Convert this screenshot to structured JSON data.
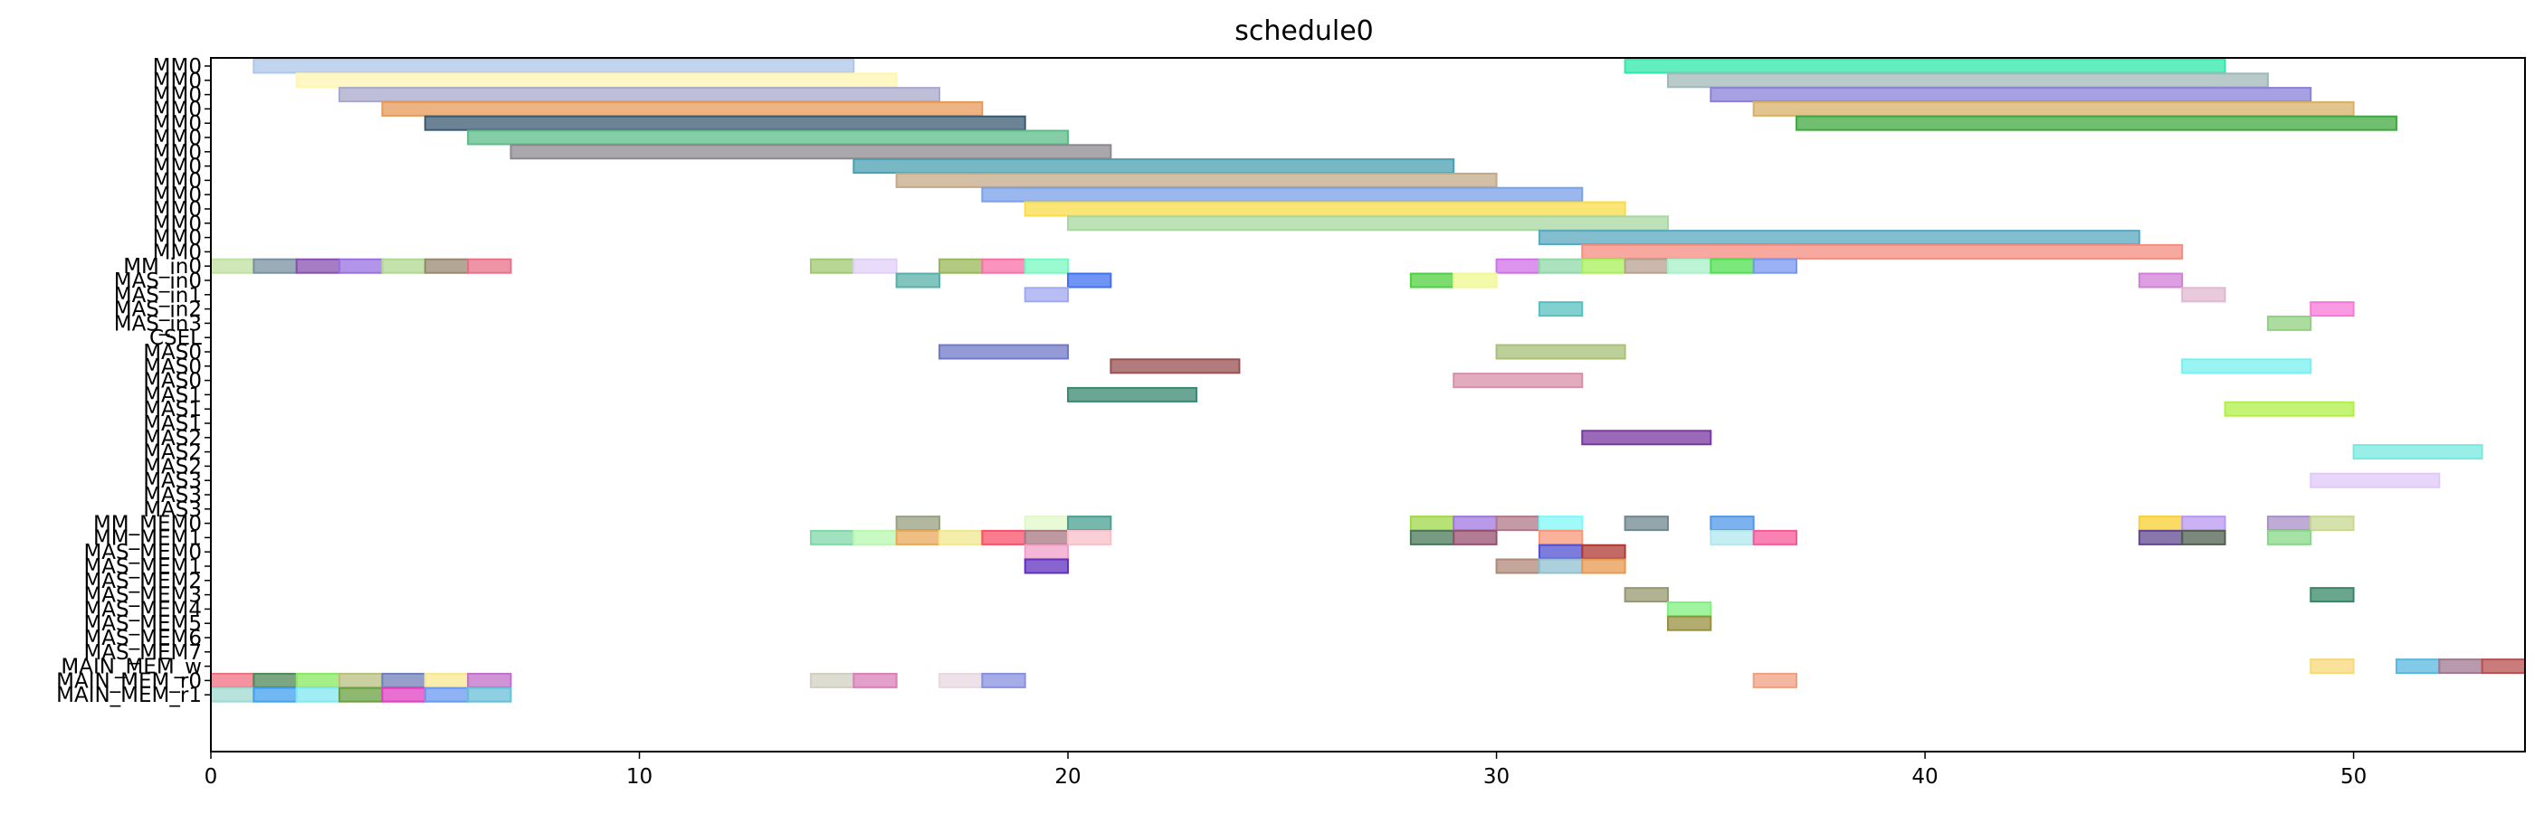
{
  "chart_data": {
    "type": "gantt",
    "title": "schedule0",
    "xlim": [
      0,
      54
    ],
    "xticks": [
      0,
      10,
      20,
      30,
      40,
      50
    ],
    "rows": [
      "MM0",
      "MM0",
      "MM0",
      "MM0",
      "MM0",
      "MM0",
      "MM0",
      "MM0",
      "MM0",
      "MM0",
      "MM0",
      "MM0",
      "MM0",
      "MM0",
      "MM_in0",
      "MAS_in0",
      "MAS_in1",
      "MAS_in2",
      "MAS_in3",
      "CSEL",
      "MAS0",
      "MAS0",
      "MAS0",
      "MAS1",
      "MAS1",
      "MAS1",
      "MAS2",
      "MAS2",
      "MAS2",
      "MAS3",
      "MAS3",
      "MAS3",
      "MM_MEM0",
      "MM_MEM1",
      "MAS_MEM0",
      "MAS_MEM1",
      "MAS_MEM2",
      "MAS_MEM3",
      "MAS_MEM4",
      "MAS_MEM5",
      "MAS_MEM6",
      "MAS_MEM7",
      "MAIN_MEM_w",
      "MAIN_MEM_r0",
      "MAIN_MEM_r1"
    ],
    "bars": [
      {
        "row": 0,
        "start": 1,
        "end": 15,
        "color": "#aec7e8"
      },
      {
        "row": 0,
        "start": 33,
        "end": 47,
        "color": "#2ee8a8"
      },
      {
        "row": 1,
        "start": 2,
        "end": 16,
        "color": "#fff6b0"
      },
      {
        "row": 1,
        "start": 34,
        "end": 48,
        "color": "#a0b8b8"
      },
      {
        "row": 2,
        "start": 3,
        "end": 17,
        "color": "#a8a8cc"
      },
      {
        "row": 2,
        "start": 35,
        "end": 49,
        "color": "#8a80d8"
      },
      {
        "row": 3,
        "start": 4,
        "end": 18,
        "color": "#e89a58"
      },
      {
        "row": 3,
        "start": 36,
        "end": 50,
        "color": "#d8b068"
      },
      {
        "row": 4,
        "start": 5,
        "end": 19,
        "color": "#3a5a70"
      },
      {
        "row": 4,
        "start": 37,
        "end": 51,
        "color": "#40a840"
      },
      {
        "row": 5,
        "start": 6,
        "end": 20,
        "color": "#5cbc88"
      },
      {
        "row": 6,
        "start": 7,
        "end": 21,
        "color": "#8c8890"
      },
      {
        "row": 7,
        "start": 15,
        "end": 29,
        "color": "#4aa0b0"
      },
      {
        "row": 8,
        "start": 16,
        "end": 30,
        "color": "#c4a888"
      },
      {
        "row": 9,
        "start": 18,
        "end": 32,
        "color": "#7aa0e8"
      },
      {
        "row": 10,
        "start": 19,
        "end": 33,
        "color": "#f8dc48"
      },
      {
        "row": 11,
        "start": 20,
        "end": 34,
        "color": "#a8d8a0"
      },
      {
        "row": 12,
        "start": 31,
        "end": 45,
        "color": "#58a8c0"
      },
      {
        "row": 13,
        "start": 32,
        "end": 46,
        "color": "#f48c80"
      },
      {
        "row": 14,
        "start": 0,
        "end": 1,
        "color": "#c0e0a0"
      },
      {
        "row": 14,
        "start": 1,
        "end": 2,
        "color": "#7890a0"
      },
      {
        "row": 14,
        "start": 2,
        "end": 3,
        "color": "#8850b0"
      },
      {
        "row": 14,
        "start": 3,
        "end": 4,
        "color": "#9870e0"
      },
      {
        "row": 14,
        "start": 4,
        "end": 5,
        "color": "#b0d890"
      },
      {
        "row": 14,
        "start": 5,
        "end": 6,
        "color": "#988870"
      },
      {
        "row": 14,
        "start": 6,
        "end": 7,
        "color": "#e87088"
      },
      {
        "row": 14,
        "start": 14,
        "end": 15,
        "color": "#a0c870"
      },
      {
        "row": 14,
        "start": 15,
        "end": 16,
        "color": "#e0d0f8"
      },
      {
        "row": 14,
        "start": 17,
        "end": 18,
        "color": "#98b858"
      },
      {
        "row": 14,
        "start": 18,
        "end": 19,
        "color": "#f870a8"
      },
      {
        "row": 14,
        "start": 19,
        "end": 20,
        "color": "#78f8c0"
      },
      {
        "row": 14,
        "start": 30,
        "end": 31,
        "color": "#d070e8"
      },
      {
        "row": 14,
        "start": 31,
        "end": 32,
        "color": "#90d8a8"
      },
      {
        "row": 14,
        "start": 32,
        "end": 33,
        "color": "#a8f058"
      },
      {
        "row": 14,
        "start": 33,
        "end": 34,
        "color": "#b8a090"
      },
      {
        "row": 14,
        "start": 34,
        "end": 35,
        "color": "#a8f0c8"
      },
      {
        "row": 14,
        "start": 35,
        "end": 36,
        "color": "#50e050"
      },
      {
        "row": 14,
        "start": 36,
        "end": 37,
        "color": "#7898f0"
      },
      {
        "row": 15,
        "start": 16,
        "end": 17,
        "color": "#58b0a8"
      },
      {
        "row": 15,
        "start": 20,
        "end": 21,
        "color": "#4070f0"
      },
      {
        "row": 15,
        "start": 28,
        "end": 29,
        "color": "#50d040"
      },
      {
        "row": 15,
        "start": 29,
        "end": 30,
        "color": "#f0f890"
      },
      {
        "row": 15,
        "start": 45,
        "end": 46,
        "color": "#d080d8"
      },
      {
        "row": 16,
        "start": 19,
        "end": 20,
        "color": "#a0a8f0"
      },
      {
        "row": 16,
        "start": 46,
        "end": 47,
        "color": "#e0b8d0"
      },
      {
        "row": 17,
        "start": 31,
        "end": 32,
        "color": "#58c0c0"
      },
      {
        "row": 17,
        "start": 49,
        "end": 50,
        "color": "#f878d8"
      },
      {
        "row": 18,
        "start": 48,
        "end": 49,
        "color": "#90d080"
      },
      {
        "row": 20,
        "start": 17,
        "end": 20,
        "color": "#7078c8"
      },
      {
        "row": 20,
        "start": 30,
        "end": 33,
        "color": "#a8c078"
      },
      {
        "row": 21,
        "start": 21,
        "end": 24,
        "color": "#985050"
      },
      {
        "row": 21,
        "start": 46,
        "end": 49,
        "color": "#78f0f0"
      },
      {
        "row": 22,
        "start": 29,
        "end": 32,
        "color": "#d890a8"
      },
      {
        "row": 23,
        "start": 20,
        "end": 23,
        "color": "#3a8870"
      },
      {
        "row": 24,
        "start": 47,
        "end": 50,
        "color": "#b0f048"
      },
      {
        "row": 26,
        "start": 32,
        "end": 35,
        "color": "#7838a0"
      },
      {
        "row": 27,
        "start": 50,
        "end": 53,
        "color": "#78e8e0"
      },
      {
        "row": 29,
        "start": 49,
        "end": 52,
        "color": "#e0c8f8"
      },
      {
        "row": 32,
        "start": 16,
        "end": 17,
        "color": "#98a080"
      },
      {
        "row": 32,
        "start": 19,
        "end": 20,
        "color": "#e0f8c8"
      },
      {
        "row": 32,
        "start": 20,
        "end": 21,
        "color": "#48a090"
      },
      {
        "row": 32,
        "start": 28,
        "end": 29,
        "color": "#a0d848"
      },
      {
        "row": 32,
        "start": 29,
        "end": 30,
        "color": "#a078e0"
      },
      {
        "row": 32,
        "start": 30,
        "end": 31,
        "color": "#b07888"
      },
      {
        "row": 32,
        "start": 31,
        "end": 32,
        "color": "#80f8f8"
      },
      {
        "row": 32,
        "start": 33,
        "end": 34,
        "color": "#708890"
      },
      {
        "row": 32,
        "start": 35,
        "end": 36,
        "color": "#5098e8"
      },
      {
        "row": 32,
        "start": 45,
        "end": 46,
        "color": "#f8d030"
      },
      {
        "row": 32,
        "start": 46,
        "end": 47,
        "color": "#b898f0"
      },
      {
        "row": 32,
        "start": 48,
        "end": 49,
        "color": "#a890c8"
      },
      {
        "row": 32,
        "start": 49,
        "end": 50,
        "color": "#c8d890"
      },
      {
        "row": 33,
        "start": 14,
        "end": 15,
        "color": "#80d8a8"
      },
      {
        "row": 33,
        "start": 15,
        "end": 16,
        "color": "#b8f8b0"
      },
      {
        "row": 33,
        "start": 16,
        "end": 17,
        "color": "#e8a858"
      },
      {
        "row": 33,
        "start": 17,
        "end": 18,
        "color": "#f0e890"
      },
      {
        "row": 33,
        "start": 18,
        "end": 19,
        "color": "#f85068"
      },
      {
        "row": 33,
        "start": 19,
        "end": 20,
        "color": "#a87880"
      },
      {
        "row": 33,
        "start": 20,
        "end": 21,
        "color": "#f8c0c8"
      },
      {
        "row": 33,
        "start": 28,
        "end": 29,
        "color": "#487858"
      },
      {
        "row": 33,
        "start": 29,
        "end": 30,
        "color": "#985070"
      },
      {
        "row": 33,
        "start": 31,
        "end": 32,
        "color": "#f89878"
      },
      {
        "row": 33,
        "start": 35,
        "end": 36,
        "color": "#b0e8f0"
      },
      {
        "row": 33,
        "start": 36,
        "end": 37,
        "color": "#f85898"
      },
      {
        "row": 33,
        "start": 45,
        "end": 46,
        "color": "#604890"
      },
      {
        "row": 33,
        "start": 46,
        "end": 47,
        "color": "#506050"
      },
      {
        "row": 33,
        "start": 48,
        "end": 49,
        "color": "#88d888"
      },
      {
        "row": 34,
        "start": 19,
        "end": 20,
        "color": "#f0a0c8"
      },
      {
        "row": 34,
        "start": 31,
        "end": 32,
        "color": "#5050d0"
      },
      {
        "row": 34,
        "start": 32,
        "end": 33,
        "color": "#b03830"
      },
      {
        "row": 35,
        "start": 19,
        "end": 20,
        "color": "#6030c0"
      },
      {
        "row": 35,
        "start": 30,
        "end": 31,
        "color": "#b08878"
      },
      {
        "row": 35,
        "start": 31,
        "end": 32,
        "color": "#90c0d0"
      },
      {
        "row": 35,
        "start": 32,
        "end": 33,
        "color": "#e89850"
      },
      {
        "row": 37,
        "start": 33,
        "end": 34,
        "color": "#989870"
      },
      {
        "row": 37,
        "start": 49,
        "end": 50,
        "color": "#388868"
      },
      {
        "row": 38,
        "start": 34,
        "end": 35,
        "color": "#80f080"
      },
      {
        "row": 39,
        "start": 34,
        "end": 35,
        "color": "#989040"
      },
      {
        "row": 42,
        "start": 49,
        "end": 50,
        "color": "#f8d878"
      },
      {
        "row": 42,
        "start": 51,
        "end": 52,
        "color": "#58b8e0"
      },
      {
        "row": 42,
        "start": 52,
        "end": 53,
        "color": "#a07890"
      },
      {
        "row": 42,
        "start": 53,
        "end": 54,
        "color": "#b85050"
      },
      {
        "row": 43,
        "start": 0,
        "end": 1,
        "color": "#f07080"
      },
      {
        "row": 43,
        "start": 1,
        "end": 2,
        "color": "#508858"
      },
      {
        "row": 43,
        "start": 2,
        "end": 3,
        "color": "#88e860"
      },
      {
        "row": 43,
        "start": 3,
        "end": 4,
        "color": "#b8c080"
      },
      {
        "row": 43,
        "start": 4,
        "end": 5,
        "color": "#7080b8"
      },
      {
        "row": 43,
        "start": 5,
        "end": 6,
        "color": "#f8e890"
      },
      {
        "row": 43,
        "start": 6,
        "end": 7,
        "color": "#c070c8"
      },
      {
        "row": 43,
        "start": 14,
        "end": 15,
        "color": "#d0d0c0"
      },
      {
        "row": 43,
        "start": 15,
        "end": 16,
        "color": "#d880b8"
      },
      {
        "row": 43,
        "start": 17,
        "end": 18,
        "color": "#e8d8e0"
      },
      {
        "row": 43,
        "start": 18,
        "end": 19,
        "color": "#8890e0"
      },
      {
        "row": 43,
        "start": 36,
        "end": 37,
        "color": "#f0a080"
      },
      {
        "row": 44,
        "start": 0,
        "end": 1,
        "color": "#a0d8d0"
      },
      {
        "row": 44,
        "start": 1,
        "end": 2,
        "color": "#40a0f0"
      },
      {
        "row": 44,
        "start": 2,
        "end": 3,
        "color": "#80e8f0"
      },
      {
        "row": 44,
        "start": 3,
        "end": 4,
        "color": "#68a040"
      },
      {
        "row": 44,
        "start": 4,
        "end": 5,
        "color": "#e040c0"
      },
      {
        "row": 44,
        "start": 5,
        "end": 6,
        "color": "#6898f0"
      },
      {
        "row": 44,
        "start": 6,
        "end": 7,
        "color": "#68c0d8"
      }
    ]
  }
}
